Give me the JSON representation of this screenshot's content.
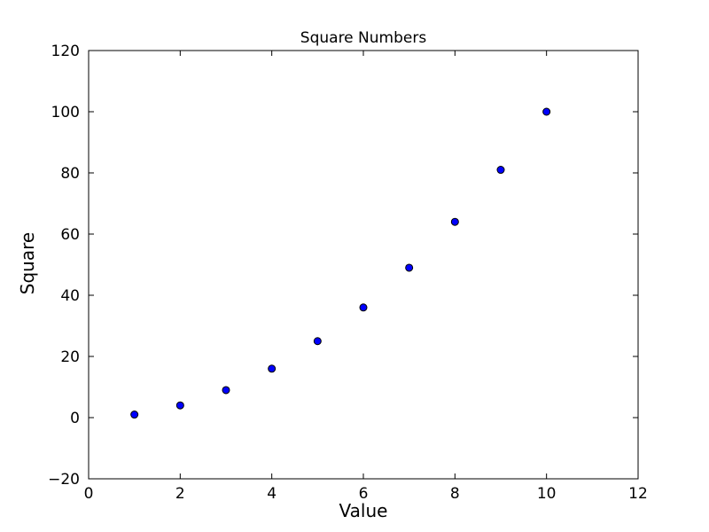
{
  "chart_data": {
    "type": "scatter",
    "title": "Square Numbers",
    "xlabel": "Value",
    "ylabel": "Square",
    "x": [
      1,
      2,
      3,
      4,
      5,
      6,
      7,
      8,
      9,
      10
    ],
    "y": [
      1,
      4,
      9,
      16,
      25,
      36,
      49,
      64,
      81,
      100
    ],
    "xlim": [
      0,
      12
    ],
    "ylim": [
      -20,
      120
    ],
    "xticks": [
      0,
      2,
      4,
      6,
      8,
      10,
      12
    ],
    "yticks": [
      -20,
      0,
      20,
      40,
      60,
      80,
      100,
      120
    ],
    "grid": false,
    "legend": null,
    "marker": {
      "shape": "circle",
      "fill_color": "#0000ff",
      "edge_color": "#000000",
      "radius": 4
    },
    "frame_color": "#000000",
    "background_color": "#ffffff"
  }
}
